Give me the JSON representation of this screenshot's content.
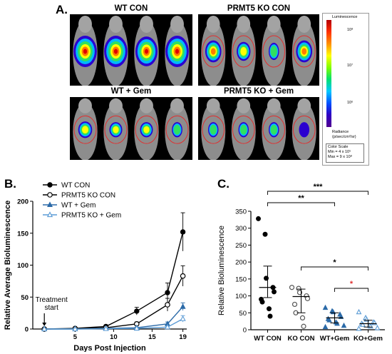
{
  "panel_a": {
    "letter": "A.",
    "titles": {
      "wt_con": "WT CON",
      "ko_con": "PRMT5 KO CON",
      "wt_gem": "WT + Gem",
      "ko_gem": "PRMT5 KO + Gem"
    },
    "colorbar": {
      "top_label": "Luminescence",
      "tick_labels": [
        "10⁸",
        "10⁷",
        "10⁶"
      ],
      "radiance_label": "Radiance",
      "radiance_unit": "(p/sec/cm²/sr)",
      "scale_title": "Color Scale",
      "scale_min": "Min = 4 x 10⁵",
      "scale_max": "Max = 9 x 10⁸"
    }
  },
  "panel_b": {
    "letter": "B."
  },
  "panel_c": {
    "letter": "C."
  },
  "chart_data": [
    {
      "type": "line",
      "ylabel": "Relative Average Bioluminescence",
      "xlabel": "Days Post Injection",
      "ylim": [
        0,
        200
      ],
      "yticks": [
        0,
        50,
        100,
        150,
        200
      ],
      "xlim": [
        -0.5,
        19.5
      ],
      "xticks": [
        5,
        10,
        15,
        19
      ],
      "annotation": [
        "Treatment",
        "start"
      ],
      "annotation_x": 1,
      "series": [
        {
          "name": "WT CON",
          "color": "#000000",
          "marker": "filled-circle",
          "x": [
            1,
            5,
            9,
            13,
            17,
            19
          ],
          "y": [
            0,
            1,
            4,
            28,
            57,
            152
          ],
          "err": [
            0,
            0.5,
            1,
            6,
            15,
            30
          ]
        },
        {
          "name": "PRMT5 KO CON",
          "color": "#000000",
          "marker": "open-circle",
          "x": [
            1,
            5,
            9,
            13,
            17,
            19
          ],
          "y": [
            0,
            0.5,
            2,
            8,
            38,
            83
          ],
          "err": [
            0,
            0.3,
            1,
            3,
            10,
            16
          ]
        },
        {
          "name": "WT + Gem",
          "color": "#2b6aa8",
          "marker": "filled-triangle",
          "x": [
            1,
            5,
            9,
            13,
            17,
            19
          ],
          "y": [
            0,
            0,
            1,
            2,
            8,
            35
          ],
          "err": [
            0,
            0,
            0.5,
            1,
            3,
            6
          ]
        },
        {
          "name": "PRMT5 KO + Gem",
          "color": "#5b9bd5",
          "marker": "open-triangle",
          "x": [
            1,
            5,
            9,
            13,
            17,
            19
          ],
          "y": [
            0,
            0,
            0.5,
            1,
            3,
            16
          ],
          "err": [
            0,
            0,
            0.3,
            0.5,
            1.5,
            5
          ]
        }
      ]
    },
    {
      "type": "scatter",
      "ylabel": "Relative Bioluminescence",
      "ylim": [
        0,
        350
      ],
      "yticks": [
        0,
        50,
        100,
        150,
        200,
        250,
        300,
        350
      ],
      "categories": [
        "WT CON",
        "KO CON",
        "WT+Gem",
        "KO+Gem"
      ],
      "colors": [
        "#000000",
        "#555555",
        "#2b6aa8",
        "#5b9bd5"
      ],
      "points": [
        [
          328,
          282,
          152,
          125,
          112,
          90,
          82,
          62,
          40
        ],
        [
          125,
          122,
          110,
          100,
          92,
          75,
          50,
          35,
          10
        ],
        [
          65,
          55,
          52,
          45,
          38,
          32,
          28,
          22,
          18,
          12,
          8
        ],
        [
          52,
          35,
          30,
          22,
          20,
          18,
          15,
          12,
          10,
          5,
          3
        ]
      ],
      "means": [
        125,
        98,
        35,
        18
      ],
      "err_low": [
        95,
        50,
        20,
        8
      ],
      "err_high": [
        188,
        120,
        50,
        28
      ],
      "significance": [
        {
          "from": 0,
          "to": 3,
          "label": "***",
          "color": "#000000"
        },
        {
          "from": 0,
          "to": 2,
          "label": "**",
          "color": "#000000"
        },
        {
          "from": 1,
          "to": 3,
          "label": "*",
          "color": "#000000"
        },
        {
          "from": 2,
          "to": 3,
          "label": "*",
          "color": "#e03030"
        }
      ]
    }
  ]
}
